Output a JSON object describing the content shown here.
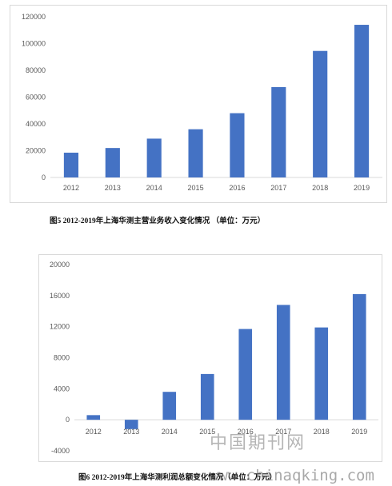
{
  "chart_data": [
    {
      "type": "bar",
      "categories": [
        "2012",
        "2013",
        "2014",
        "2015",
        "2016",
        "2017",
        "2018",
        "2019"
      ],
      "values": [
        18500,
        22000,
        29000,
        36000,
        48000,
        67500,
        94500,
        114000
      ],
      "ylim": [
        0,
        120000
      ],
      "yticks": [
        "0",
        "20000",
        "40000",
        "60000",
        "80000",
        "100000",
        "120000"
      ],
      "grid": false,
      "bar_color": "#4472c4"
    },
    {
      "type": "bar",
      "categories": [
        "2012",
        "2013",
        "2014",
        "2015",
        "2016",
        "2017",
        "2018",
        "2019"
      ],
      "values": [
        600,
        -1200,
        3600,
        5900,
        11700,
        14800,
        11900,
        16200
      ],
      "ylim": [
        -4000,
        20000
      ],
      "yticks": [
        "-4000",
        "0",
        "4000",
        "8000",
        "12000",
        "16000",
        "20000"
      ],
      "grid": false,
      "bar_color": "#4472c4"
    }
  ],
  "captions": {
    "fig5": "图5  2012-2019年上海华测主营业务收入变化情况 （单位：万元）",
    "fig6": "图6   2012-2019年上海华测利润总额变化情况（单位：万元）"
  },
  "watermark": {
    "text": "中国期刊网",
    "url": "www.chinaqking.com"
  }
}
